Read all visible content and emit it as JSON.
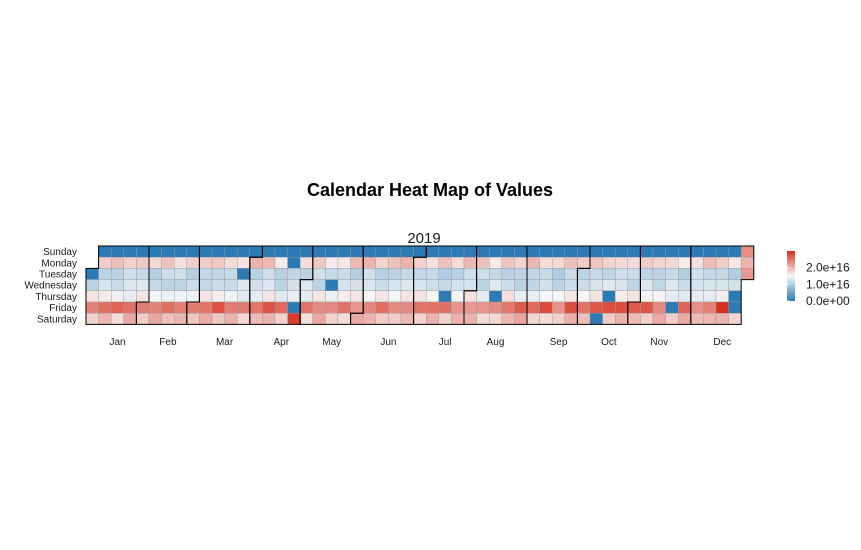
{
  "chart_data": {
    "type": "heatmap",
    "title": "Calendar Heat Map of Values",
    "panel": "2019",
    "year": 2019,
    "weekdays": [
      "Sunday",
      "Monday",
      "Tuesday",
      "Wednesday",
      "Thursday",
      "Friday",
      "Saturday"
    ],
    "months": [
      "Jan",
      "Feb",
      "Mar",
      "Apr",
      "May",
      "Jun",
      "Jul",
      "Aug",
      "Sep",
      "Oct",
      "Nov",
      "Dec"
    ],
    "typical_by_weekday": [
      0.0,
      1.8e+16,
      1.1e+16,
      1.2e+16,
      1.5e+16,
      2.5e+16,
      1.9e+16
    ],
    "outliers": [
      {
        "date": "2019-01-01",
        "value": 0.0
      },
      {
        "date": "2019-03-26",
        "value": 0.0
      },
      {
        "date": "2019-04-22",
        "value": 0.0
      },
      {
        "date": "2019-04-26",
        "value": 0.0
      },
      {
        "date": "2019-04-27",
        "value": 2.9e+16
      },
      {
        "date": "2019-05-13",
        "value": 1.6e+16
      },
      {
        "date": "2019-05-15",
        "value": 0.0
      },
      {
        "date": "2019-07-18",
        "value": 0.0
      },
      {
        "date": "2019-08-15",
        "value": 0.0
      },
      {
        "date": "2019-10-12",
        "value": 0.0
      },
      {
        "date": "2019-10-17",
        "value": 0.0
      },
      {
        "date": "2019-11-22",
        "value": 0.0
      },
      {
        "date": "2019-12-20",
        "value": 3e+16
      },
      {
        "date": "2019-12-26",
        "value": 0.0
      },
      {
        "date": "2019-12-27",
        "value": 0.0
      },
      {
        "date": "2019-12-29",
        "value": 2.3e+16
      },
      {
        "date": "2019-12-30",
        "value": 2e+16
      },
      {
        "date": "2019-12-31",
        "value": 2.2e+16
      }
    ],
    "color_scale": {
      "low_color": "#2c7bb6",
      "mid_color": "#f7f7f7",
      "high_color": "#d7301f",
      "range": [
        0,
        3e+16
      ]
    },
    "legend": {
      "placement": "right",
      "labels": [
        "2.0e+16",
        "1.0e+16",
        "0.0e+00"
      ],
      "values": [
        2e+16,
        1e+16,
        0.0
      ]
    }
  }
}
